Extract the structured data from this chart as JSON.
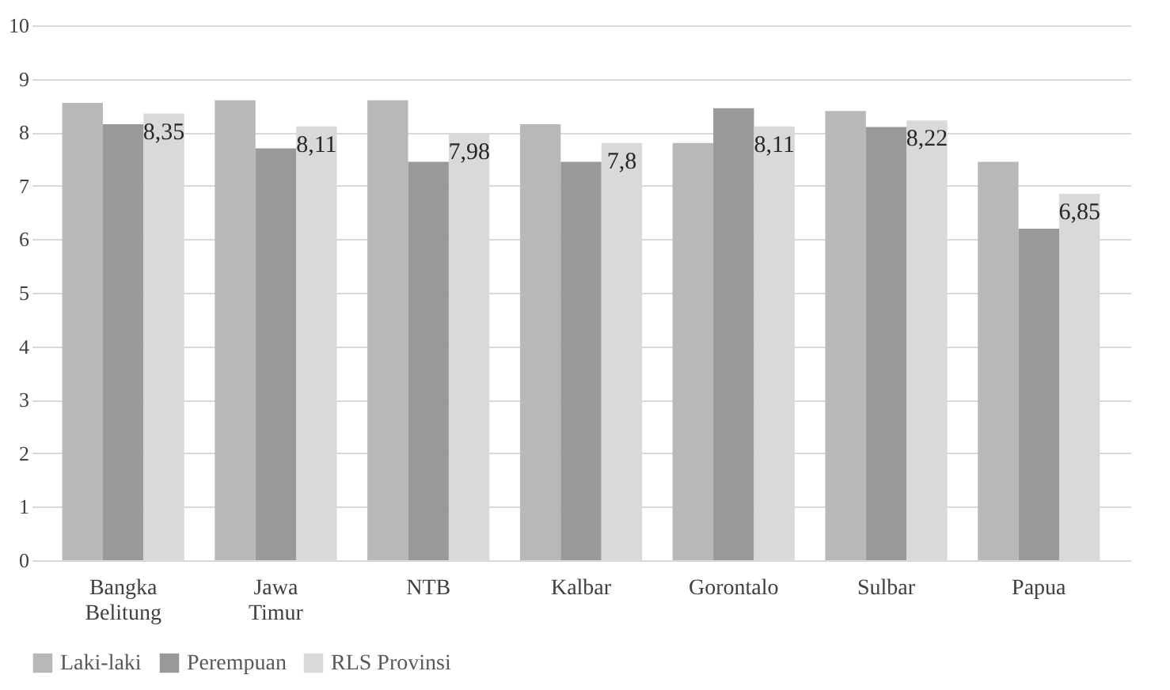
{
  "chart_data": {
    "type": "bar",
    "categories": [
      "Bangka Belitung",
      "Jawa Timur",
      "NTB",
      "Kalbar",
      "Gorontalo",
      "Sulbar",
      "Papua"
    ],
    "series": [
      {
        "name": "Laki-laki",
        "color": "#b8b8b8",
        "values": [
          8.55,
          8.6,
          8.6,
          8.15,
          7.8,
          8.4,
          7.45
        ]
      },
      {
        "name": "Perempuan",
        "color": "#999999",
        "values": [
          8.15,
          7.7,
          7.45,
          7.45,
          8.45,
          8.1,
          6.2
        ]
      },
      {
        "name": "RLS Provinsi",
        "color": "#d9d9d9",
        "values": [
          8.35,
          8.11,
          7.98,
          7.8,
          8.11,
          8.22,
          6.85
        ],
        "value_labels": [
          "8,35",
          "8,11",
          "7,98",
          "7,8",
          "8,11",
          "8,22",
          "6,85"
        ]
      }
    ],
    "ylim": [
      0,
      10
    ],
    "yticks": [
      0,
      1,
      2,
      3,
      4,
      5,
      6,
      7,
      8,
      9,
      10
    ],
    "grid": "y",
    "legend": "bottom"
  }
}
